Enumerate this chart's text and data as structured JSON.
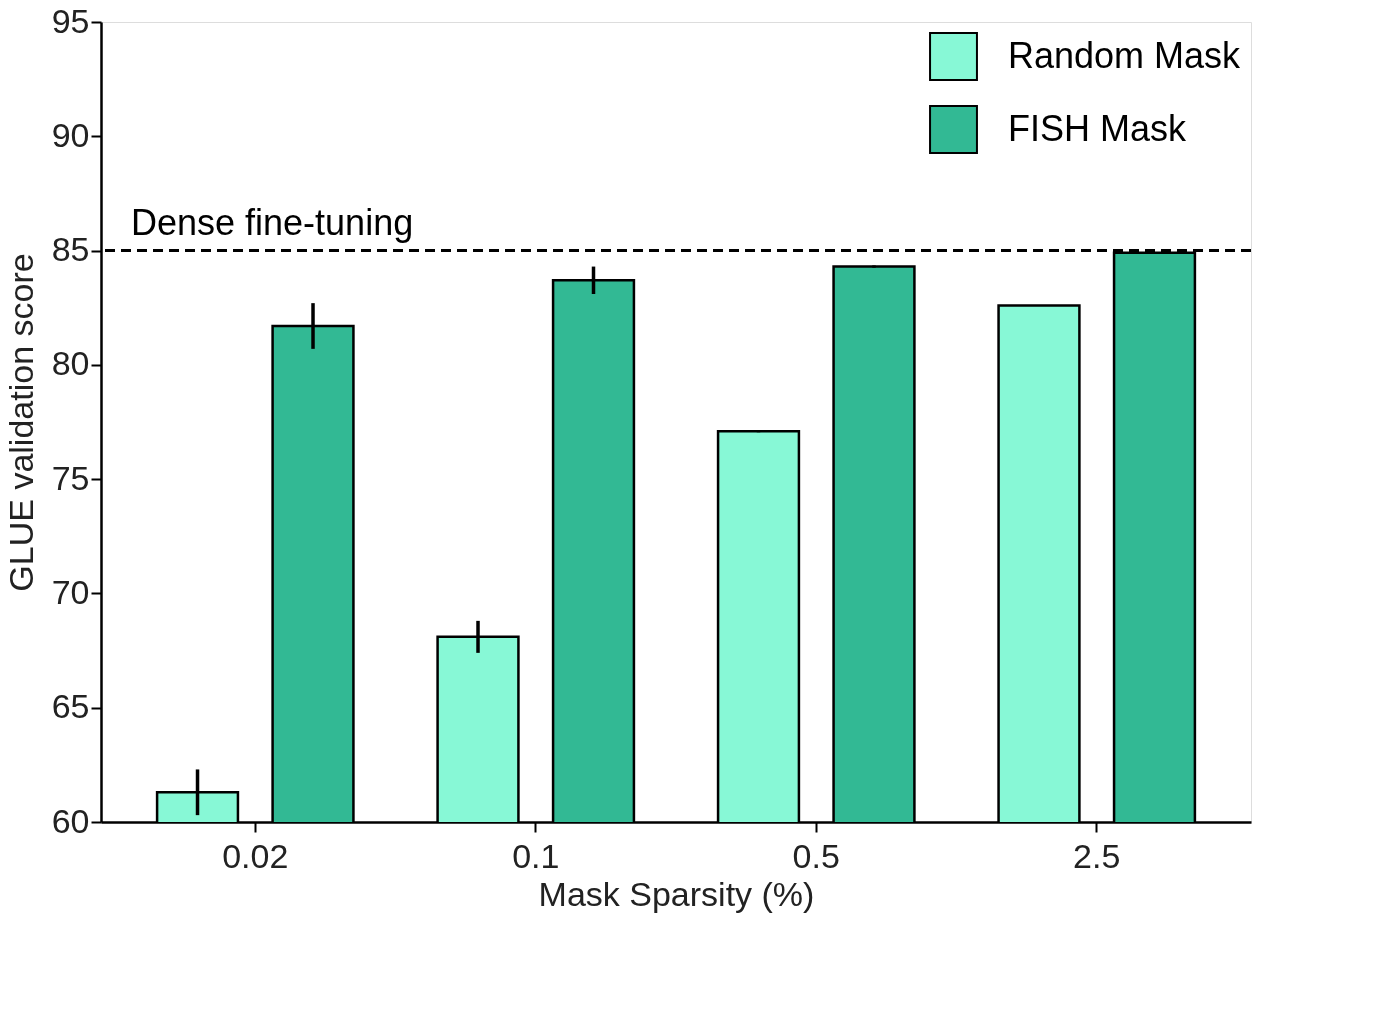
{
  "chart_data": {
    "type": "bar",
    "xlabel": "Mask Sparsity (%)",
    "ylabel": "GLUE validation score",
    "categories": [
      "0.02",
      "0.1",
      "0.5",
      "2.5"
    ],
    "series": [
      {
        "name": "Random Mask",
        "color": "#87f8d6",
        "values": [
          61.3,
          68.1,
          77.1,
          82.6
        ],
        "errors": [
          1.0,
          0.7,
          0.05,
          null
        ]
      },
      {
        "name": "FISH Mask",
        "color": "#32b994",
        "values": [
          81.7,
          83.7,
          84.3,
          84.9
        ],
        "errors": [
          1.0,
          0.6,
          0.05,
          null
        ]
      }
    ],
    "ylim": [
      60,
      95
    ],
    "yticks": [
      60,
      65,
      70,
      75,
      80,
      85,
      90,
      95
    ],
    "ref_lines": [
      {
        "axis": "y",
        "value": 85,
        "label": "Dense fine-tuning",
        "color": "#000000",
        "line_style": "dashed"
      }
    ],
    "legend": "top right",
    "grid": false
  }
}
